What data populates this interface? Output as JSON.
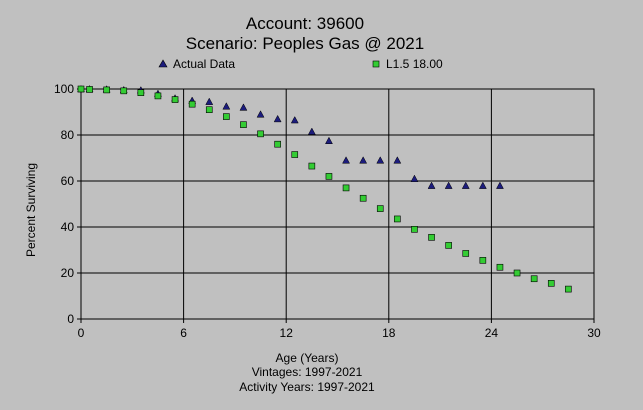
{
  "chart_data": {
    "type": "scatter",
    "title": "Account: 39600",
    "subtitle": "Scenario: Peoples Gas @ 2021",
    "xlabel": "Age (Years)",
    "ylabel": "Percent Surviving",
    "footer_lines": [
      "Vintages: 1997-2021",
      "Activity Years: 1997-2021"
    ],
    "xlim": [
      0,
      30
    ],
    "ylim": [
      0,
      100
    ],
    "x_ticks": [
      0,
      6,
      12,
      18,
      24,
      30
    ],
    "y_ticks": [
      0,
      20,
      40,
      60,
      80,
      100
    ],
    "grid": true,
    "legend_position": "top",
    "series": [
      {
        "name": "Actual Data",
        "marker": "triangle",
        "color": "#1c1c7c",
        "points": [
          [
            0.0,
            100.0
          ],
          [
            0.5,
            100.0
          ],
          [
            1.5,
            99.9
          ],
          [
            2.5,
            99.6
          ],
          [
            3.5,
            99.5
          ],
          [
            4.5,
            98.0
          ],
          [
            5.5,
            96.0
          ],
          [
            6.5,
            95.0
          ],
          [
            7.5,
            94.5
          ],
          [
            8.5,
            92.5
          ],
          [
            9.5,
            92.0
          ],
          [
            10.5,
            89.0
          ],
          [
            11.5,
            87.0
          ],
          [
            12.5,
            86.5
          ],
          [
            13.5,
            81.5
          ],
          [
            14.5,
            77.5
          ],
          [
            15.5,
            69.0
          ],
          [
            16.5,
            69.0
          ],
          [
            17.5,
            69.0
          ],
          [
            18.5,
            69.0
          ],
          [
            19.5,
            61.0
          ],
          [
            20.5,
            58.0
          ],
          [
            21.5,
            58.0
          ],
          [
            22.5,
            58.0
          ],
          [
            23.5,
            58.0
          ],
          [
            24.5,
            58.0
          ]
        ]
      },
      {
        "name": "L1.5 18.00",
        "marker": "square",
        "color": "#33cc33",
        "points": [
          [
            0.0,
            100.0
          ],
          [
            0.5,
            99.8
          ],
          [
            1.5,
            99.6
          ],
          [
            2.5,
            99.2
          ],
          [
            3.5,
            98.4
          ],
          [
            4.5,
            97.0
          ],
          [
            5.5,
            95.4
          ],
          [
            6.5,
            93.4
          ],
          [
            7.5,
            91.0
          ],
          [
            8.5,
            88.0
          ],
          [
            9.5,
            84.5
          ],
          [
            10.5,
            80.5
          ],
          [
            11.5,
            76.0
          ],
          [
            12.5,
            71.5
          ],
          [
            13.5,
            66.5
          ],
          [
            14.5,
            62.0
          ],
          [
            15.5,
            57.0
          ],
          [
            16.5,
            52.5
          ],
          [
            17.5,
            48.0
          ],
          [
            18.5,
            43.5
          ],
          [
            19.5,
            39.0
          ],
          [
            20.5,
            35.5
          ],
          [
            21.5,
            32.0
          ],
          [
            22.5,
            28.5
          ],
          [
            23.5,
            25.5
          ],
          [
            24.5,
            22.5
          ],
          [
            25.5,
            20.0
          ],
          [
            26.5,
            17.5
          ],
          [
            27.5,
            15.5
          ],
          [
            28.5,
            13.0
          ]
        ]
      }
    ]
  }
}
